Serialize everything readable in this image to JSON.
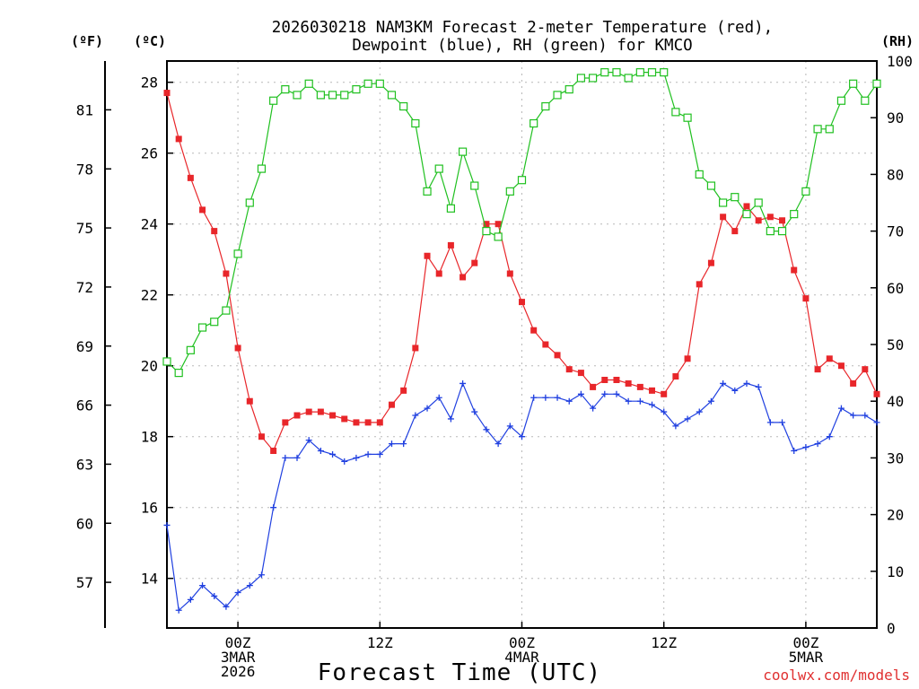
{
  "chart_data": {
    "type": "line",
    "title": "2026030218 NAM3KM Forecast 2-meter Temperature (red),",
    "subtitle": "Dewpoint (blue), RH (green) for KMCO",
    "xlabel": "Forecast Time (UTC)",
    "credit": "coolwx.com/models",
    "x_hours_from_init": [
      0,
      1,
      2,
      3,
      4,
      5,
      6,
      7,
      8,
      9,
      10,
      11,
      12,
      13,
      14,
      15,
      16,
      17,
      18,
      19,
      20,
      21,
      22,
      23,
      24,
      25,
      26,
      27,
      28,
      29,
      30,
      31,
      32,
      33,
      34,
      35,
      36,
      37,
      38,
      39,
      40,
      41,
      42,
      43,
      44,
      45,
      46,
      47,
      48,
      49,
      50,
      51,
      52,
      53,
      54,
      55,
      56,
      57,
      58,
      59,
      60
    ],
    "x_range_hours": [
      0,
      60
    ],
    "x_ticks": [
      {
        "hour": 6,
        "lines": [
          "00Z",
          "3MAR",
          "2026"
        ]
      },
      {
        "hour": 18,
        "lines": [
          "12Z"
        ]
      },
      {
        "hour": 30,
        "lines": [
          "00Z",
          "4MAR"
        ]
      },
      {
        "hour": 42,
        "lines": [
          "12Z"
        ]
      },
      {
        "hour": 54,
        "lines": [
          "00Z",
          "5MAR"
        ]
      }
    ],
    "axes": {
      "celsius": {
        "unit_label": "(ºC)",
        "range": [
          12.6,
          28.6
        ],
        "ticks": [
          14,
          16,
          18,
          20,
          22,
          24,
          26,
          28
        ]
      },
      "fahrenheit": {
        "unit_label": "(ºF)",
        "ticks": [
          57,
          60,
          63,
          66,
          69,
          72,
          75,
          78,
          81
        ]
      },
      "rh": {
        "unit_label": "(RH)",
        "range": [
          0,
          100
        ],
        "ticks": [
          0,
          10,
          20,
          30,
          40,
          50,
          60,
          70,
          80,
          90,
          100
        ]
      }
    },
    "series": [
      {
        "name": "Temperature",
        "unit": "C",
        "axis": "celsius",
        "color": "#e8262a",
        "marker": "filled-square",
        "values": [
          27.7,
          26.4,
          25.3,
          24.4,
          23.8,
          22.6,
          20.5,
          19.0,
          18.0,
          17.6,
          18.4,
          18.6,
          18.7,
          18.7,
          18.6,
          18.5,
          18.4,
          18.4,
          18.4,
          18.9,
          19.3,
          20.5,
          23.1,
          22.6,
          23.4,
          22.5,
          22.9,
          24.0,
          24.0,
          22.6,
          21.8,
          21.0,
          20.6,
          20.3,
          19.9,
          19.8,
          19.4,
          19.6,
          19.6,
          19.5,
          19.4,
          19.3,
          19.2,
          19.7,
          20.2,
          22.3,
          22.9,
          24.2,
          23.8,
          24.5,
          24.1,
          24.2,
          24.1,
          22.7,
          21.9,
          19.9,
          20.2,
          20.0,
          19.5,
          19.9,
          19.2
        ]
      },
      {
        "name": "Dewpoint",
        "unit": "C",
        "axis": "celsius",
        "color": "#2040e0",
        "marker": "plus",
        "values": [
          15.5,
          13.1,
          13.4,
          13.8,
          13.5,
          13.2,
          13.6,
          13.8,
          14.1,
          16.0,
          17.4,
          17.4,
          17.9,
          17.6,
          17.5,
          17.3,
          17.4,
          17.5,
          17.5,
          17.8,
          17.8,
          18.6,
          18.8,
          19.1,
          18.5,
          19.5,
          18.7,
          18.2,
          17.8,
          18.3,
          18.0,
          19.1,
          19.1,
          19.1,
          19.0,
          19.2,
          18.8,
          19.2,
          19.2,
          19.0,
          19.0,
          18.9,
          18.7,
          18.3,
          18.5,
          18.7,
          19.0,
          19.5,
          19.3,
          19.5,
          19.4,
          18.4,
          18.4,
          17.6,
          17.7,
          17.8,
          18.0,
          18.8,
          18.6,
          18.6,
          18.4
        ]
      },
      {
        "name": "RH",
        "unit": "%",
        "axis": "rh",
        "color": "#20c020",
        "marker": "open-square",
        "values": [
          47,
          45,
          49,
          53,
          54,
          56,
          66,
          75,
          81,
          93,
          95,
          94,
          96,
          94,
          94,
          94,
          95,
          96,
          96,
          94,
          92,
          89,
          77,
          81,
          74,
          84,
          78,
          70,
          69,
          77,
          79,
          89,
          92,
          94,
          95,
          97,
          97,
          98,
          98,
          97,
          98,
          98,
          98,
          91,
          90,
          80,
          78,
          75,
          76,
          73,
          75,
          70,
          70,
          73,
          77,
          88,
          88,
          93,
          96,
          93,
          96
        ]
      }
    ]
  }
}
